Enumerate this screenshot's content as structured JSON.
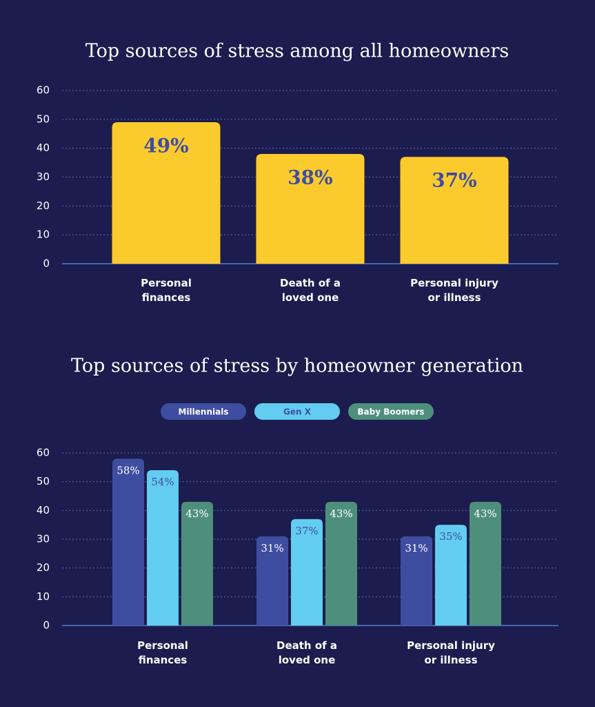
{
  "chart_data": [
    {
      "type": "bar",
      "title": "Top sources of stress among all homeowners",
      "categories": [
        "Personal\nfinances",
        "Death of a\nloved one",
        "Personal injury\nor illness"
      ],
      "values": [
        49,
        38,
        37
      ],
      "value_labels": [
        "49%",
        "38%",
        "37%"
      ],
      "color": "#fbcb2d",
      "ylim": [
        0,
        60
      ],
      "yticks": [
        0,
        10,
        20,
        30,
        40,
        50,
        60
      ],
      "grid": true
    },
    {
      "type": "grouped_bar",
      "title": "Top sources of stress by homeowner generation",
      "categories": [
        "Personal\nfinances",
        "Death of a\nloved one",
        "Personal injury\nor illness"
      ],
      "series": [
        {
          "name": "Millennials",
          "color": "#3f4da0",
          "values": [
            58,
            31,
            31
          ],
          "value_labels": [
            "58%",
            "31%",
            "31%"
          ]
        },
        {
          "name": "Gen X",
          "color": "#62cdf0",
          "values": [
            54,
            37,
            35
          ],
          "value_labels": [
            "54%",
            "37%",
            "35%"
          ]
        },
        {
          "name": "Baby Boomers",
          "color": "#4e8f7c",
          "values": [
            43,
            43,
            43
          ],
          "value_labels": [
            "43%",
            "43%",
            "43%"
          ]
        }
      ],
      "ylim": [
        0,
        60
      ],
      "yticks": [
        0,
        10,
        20,
        30,
        40,
        50,
        60
      ],
      "grid": true,
      "legend": "top"
    }
  ]
}
